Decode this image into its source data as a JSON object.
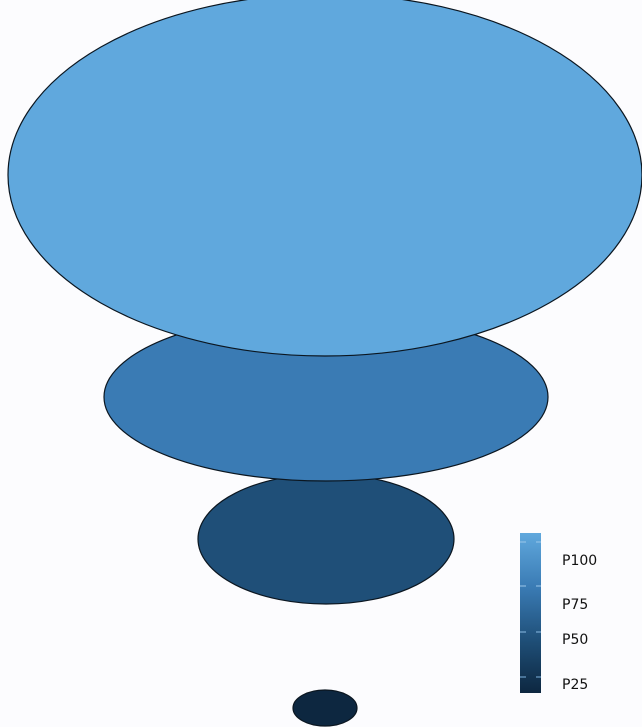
{
  "chart_data": {
    "type": "bubble",
    "series": [
      {
        "label": "P25",
        "value": 25
      },
      {
        "label": "P50",
        "value": 50
      },
      {
        "label": "P75",
        "value": 75
      },
      {
        "label": "P100",
        "value": 100
      }
    ],
    "legend": {
      "placement": "bottom-right",
      "labels": [
        "P100",
        "P75",
        "P50",
        "P25"
      ]
    },
    "colors": {
      "P25": "#0d2740",
      "P50": "#1f4f78",
      "P75": "#3a7bb4",
      "P100": "#60a8dd"
    },
    "background": "#fcfcfe"
  }
}
